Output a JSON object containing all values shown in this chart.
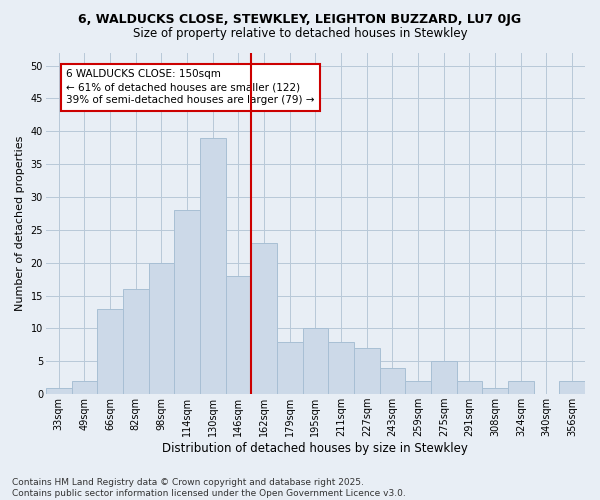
{
  "title": "6, WALDUCKS CLOSE, STEWKLEY, LEIGHTON BUZZARD, LU7 0JG",
  "subtitle": "Size of property relative to detached houses in Stewkley",
  "xlabel": "Distribution of detached houses by size in Stewkley",
  "ylabel": "Number of detached properties",
  "bins": [
    "33sqm",
    "49sqm",
    "66sqm",
    "82sqm",
    "98sqm",
    "114sqm",
    "130sqm",
    "146sqm",
    "162sqm",
    "179sqm",
    "195sqm",
    "211sqm",
    "227sqm",
    "243sqm",
    "259sqm",
    "275sqm",
    "291sqm",
    "308sqm",
    "324sqm",
    "340sqm",
    "356sqm"
  ],
  "values": [
    1,
    2,
    13,
    16,
    20,
    28,
    39,
    18,
    23,
    8,
    10,
    8,
    7,
    4,
    2,
    5,
    2,
    1,
    2,
    0,
    2
  ],
  "bar_color": "#ccd9e8",
  "bar_edge_color": "#a8bfd4",
  "vline_color": "#cc0000",
  "annotation_title": "6 WALDUCKS CLOSE: 150sqm",
  "annotation_line1": "← 61% of detached houses are smaller (122)",
  "annotation_line2": "39% of semi-detached houses are larger (79) →",
  "annotation_box_edge": "#cc0000",
  "ylim": [
    0,
    52
  ],
  "yticks": [
    0,
    5,
    10,
    15,
    20,
    25,
    30,
    35,
    40,
    45,
    50
  ],
  "footer": "Contains HM Land Registry data © Crown copyright and database right 2025.\nContains public sector information licensed under the Open Government Licence v3.0.",
  "bg_color": "#e8eef5",
  "plot_bg_color": "#e8eef5",
  "grid_color": "#b8c8d8",
  "title_fontsize": 9,
  "subtitle_fontsize": 8.5,
  "tick_fontsize": 7,
  "ylabel_fontsize": 8,
  "xlabel_fontsize": 8.5,
  "annotation_fontsize": 7.5,
  "footer_fontsize": 6.5
}
